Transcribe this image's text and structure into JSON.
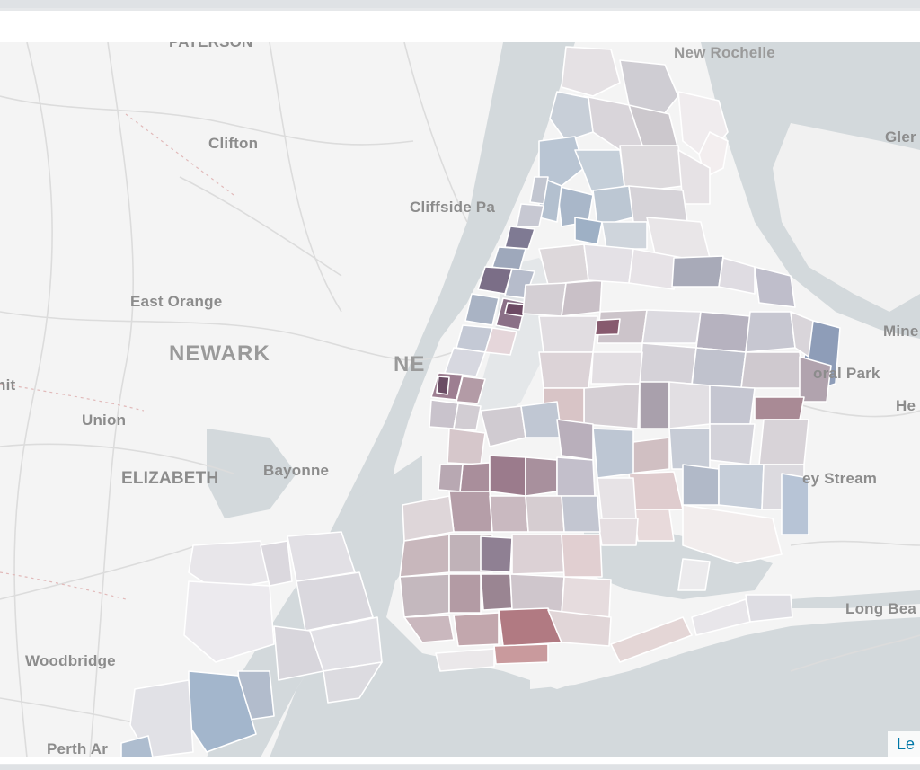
{
  "map": {
    "place_labels": [
      {
        "key": "paterson",
        "text": "PATERSON"
      },
      {
        "key": "new-rochelle",
        "text": "New Rochelle"
      },
      {
        "key": "clifton",
        "text": "Clifton"
      },
      {
        "key": "cliffside-park",
        "text": "Cliffside Pa"
      },
      {
        "key": "east-orange",
        "text": "East Orange"
      },
      {
        "key": "newark",
        "text": "NEWARK"
      },
      {
        "key": "new-york",
        "text": "NE"
      },
      {
        "key": "union",
        "text": "Union"
      },
      {
        "key": "elizabeth",
        "text": "ELIZABETH"
      },
      {
        "key": "bayonne",
        "text": "Bayonne"
      },
      {
        "key": "woodbridge",
        "text": "Woodbridge"
      },
      {
        "key": "perth-amboy",
        "text": "Perth Ar"
      },
      {
        "key": "glen-cove",
        "text": "Gler"
      },
      {
        "key": "mineola",
        "text": "Mine"
      },
      {
        "key": "floral-park",
        "text": "oral Park"
      },
      {
        "key": "hempstead",
        "text": "He"
      },
      {
        "key": "valley-stream",
        "text": "ey Stream"
      },
      {
        "key": "long-beach",
        "text": "Long Bea"
      },
      {
        "key": "summit",
        "text": "nit"
      }
    ],
    "attribution": "Le",
    "colors": {
      "land": "#f4f4f4",
      "water": "#d4dadc",
      "choropleth_high": "#8c4a5e",
      "choropleth_low": "#8aa5c2",
      "choropleth_neutral": "#e8e4e6"
    }
  }
}
